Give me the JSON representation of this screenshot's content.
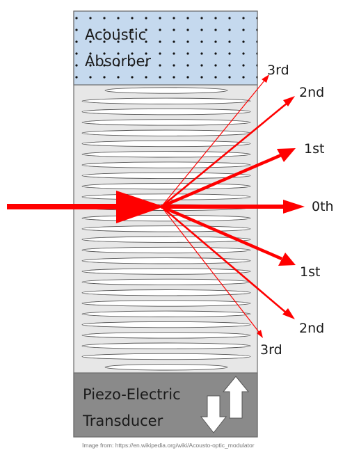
{
  "absorber": {
    "line1": "Acoustic",
    "line2": "Absorber"
  },
  "transducer": {
    "line1": "Piezo-Electric",
    "line2": "Transducer"
  },
  "orders": {
    "up3": "3rd",
    "up2": "2nd",
    "up1": "1st",
    "zero": "0th",
    "down1": "1st",
    "down2": "2nd",
    "down3": "3rd"
  },
  "credit": "Image from: https://en.wikipedia.org/wiki/Acousto-optic_modulator",
  "colors": {
    "beam": "#ff0000",
    "absorber_fill": "#c5d9ee",
    "crystal_fill": "#e7e7e7",
    "transducer_fill": "#8a8a8a",
    "outline": "#6b6b6b"
  },
  "icons": {
    "arrows": "up-down-arrows-icon"
  }
}
